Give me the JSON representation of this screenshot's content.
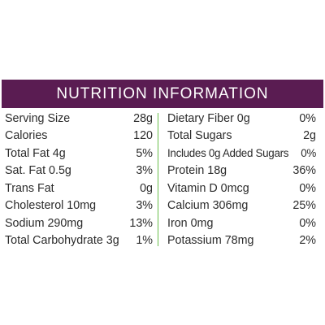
{
  "colors": {
    "header_bg": "#5a1c52",
    "divider": "#6abf4b",
    "text": "#2b2b2b"
  },
  "header": {
    "title": "NUTRITION INFORMATION"
  },
  "left_column": [
    {
      "label": "Serving Size",
      "value": "28g"
    },
    {
      "label": "Calories",
      "value": "120"
    },
    {
      "label": "Total Fat 4g",
      "value": "5%"
    },
    {
      "label": "Sat. Fat 0.5g",
      "value": "3%"
    },
    {
      "label": "Trans Fat",
      "value": "0g"
    },
    {
      "label": "Cholesterol 10mg",
      "value": "3%"
    },
    {
      "label": "Sodium 290mg",
      "value": "13%"
    },
    {
      "label": "Total Carbohydrate 3g",
      "value": "1%"
    }
  ],
  "right_column": [
    {
      "label": "Dietary Fiber 0g",
      "value": "0%"
    },
    {
      "label": "Total Sugars",
      "value": "2g"
    },
    {
      "label": "Includes 0g Added Sugars",
      "value": "0%"
    },
    {
      "label": "Protein 18g",
      "value": "36%"
    },
    {
      "label": "Vitamin D 0mcg",
      "value": "0%"
    },
    {
      "label": "Calcium 306mg",
      "value": "25%"
    },
    {
      "label": "Iron 0mg",
      "value": "0%"
    },
    {
      "label": "Potassium 78mg",
      "value": "2%"
    }
  ]
}
